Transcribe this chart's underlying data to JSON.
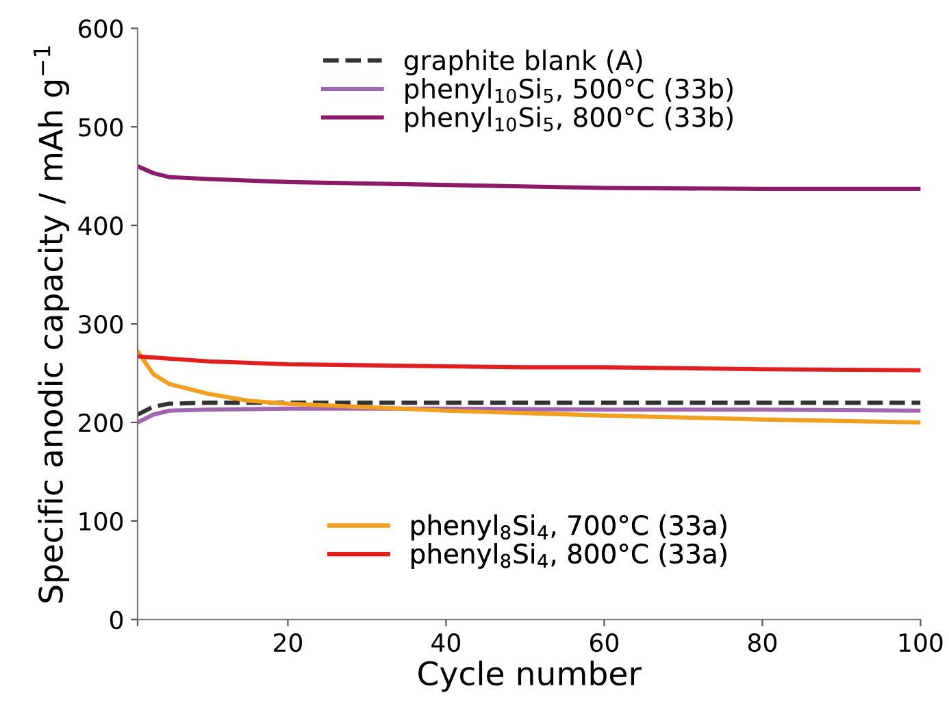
{
  "chart_data": {
    "type": "line",
    "xlabel": "Cycle number",
    "ylabel": "Specific anodic capacity / mAh g$^{−1}$",
    "xlim": [
      1,
      100
    ],
    "xticks": [
      {
        "value": 1,
        "label": null
      },
      20,
      40,
      60,
      80,
      100
    ],
    "ylim": [
      0,
      600
    ],
    "yticks": [
      0,
      100,
      200,
      300,
      400,
      500,
      600
    ],
    "grid": false,
    "marker": "none",
    "legend": "top",
    "series": [
      {
        "name": "graphite blank (A)",
        "color": "#333333",
        "line_style": "dashed",
        "x": [
          1,
          3,
          5,
          10,
          20,
          40,
          60,
          80,
          100
        ],
        "values": [
          208,
          216,
          219,
          220,
          220,
          220,
          220,
          220,
          220
        ]
      },
      {
        "name": "phenyl$_{10}$Si$_{5}$, 500°C (33b)",
        "color": "#a066b0",
        "line_style": "solid",
        "x": [
          1,
          3,
          5,
          10,
          20,
          40,
          60,
          80,
          100
        ],
        "values": [
          200,
          208,
          212,
          213,
          214,
          214,
          213,
          213,
          212
        ]
      },
      {
        "name": "phenyl$_{10}$Si$_{5}$, 800°C (33b)",
        "color": "#8b1a6b",
        "line_style": "solid",
        "x": [
          1,
          3,
          5,
          10,
          20,
          40,
          60,
          80,
          100
        ],
        "values": [
          460,
          453,
          449,
          447,
          444,
          441,
          438,
          437,
          437
        ]
      },
      {
        "name": "phenyl$_{8}$Si$_{4}$, 700°C (33a)",
        "color": "#f0a020",
        "line_style": "solid",
        "x": [
          1,
          3,
          5,
          10,
          15,
          20,
          40,
          60,
          80,
          100
        ],
        "values": [
          272,
          249,
          239,
          229,
          222,
          219,
          212,
          207,
          203,
          200
        ]
      },
      {
        "name": "phenyl$_{8}$Si$_{4}$, 800°C (33a)",
        "color": "#e02020",
        "line_style": "solid",
        "x": [
          1,
          10,
          20,
          40,
          50,
          60,
          80,
          100
        ],
        "values": [
          267,
          262,
          259,
          257,
          256,
          256,
          254,
          253
        ]
      }
    ]
  }
}
